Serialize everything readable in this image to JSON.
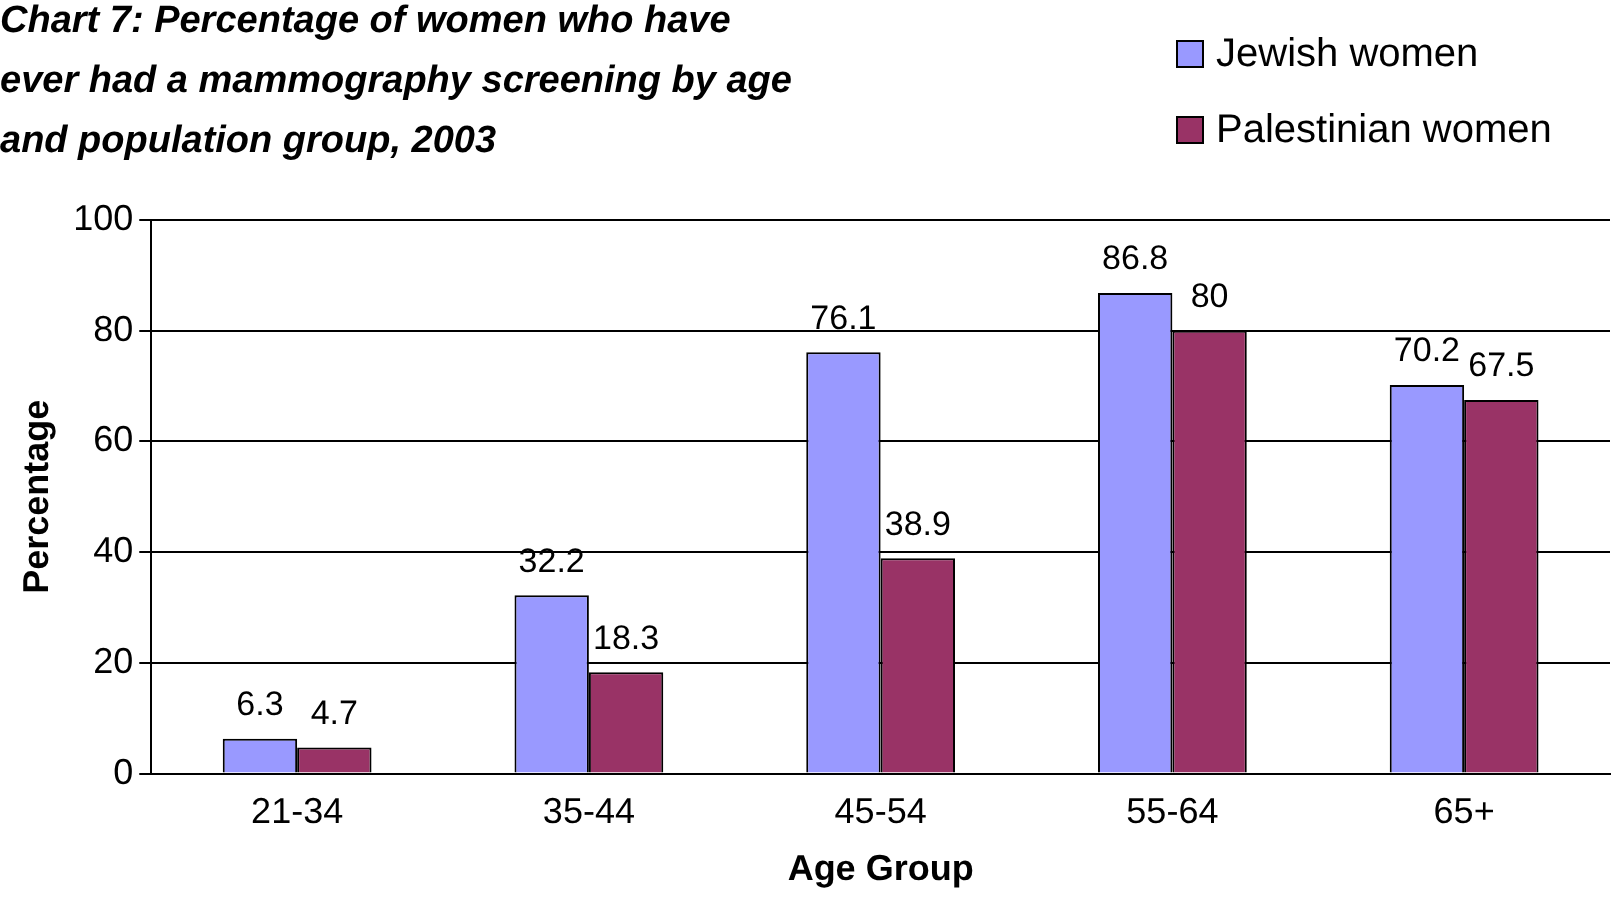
{
  "chart_data": {
    "type": "bar",
    "title": "Chart 7: Percentage of women who have ever had a mammography screening by age and population group, 2003",
    "xlabel": "Age Group",
    "ylabel": "Percentage",
    "categories": [
      "21-34",
      "35-44",
      "45-54",
      "55-64",
      "65+"
    ],
    "series": [
      {
        "name": "Jewish women",
        "color": "#9999ff",
        "values": [
          6.3,
          32.2,
          76.1,
          86.8,
          70.2
        ]
      },
      {
        "name": "Palestinian women",
        "color": "#993366",
        "values": [
          4.7,
          18.3,
          38.9,
          80,
          67.5
        ]
      }
    ],
    "ylim": [
      0,
      100
    ],
    "yticks": [
      0,
      20,
      40,
      60,
      80,
      100
    ],
    "grid": "y",
    "legend": "top right",
    "data_labels": true
  }
}
